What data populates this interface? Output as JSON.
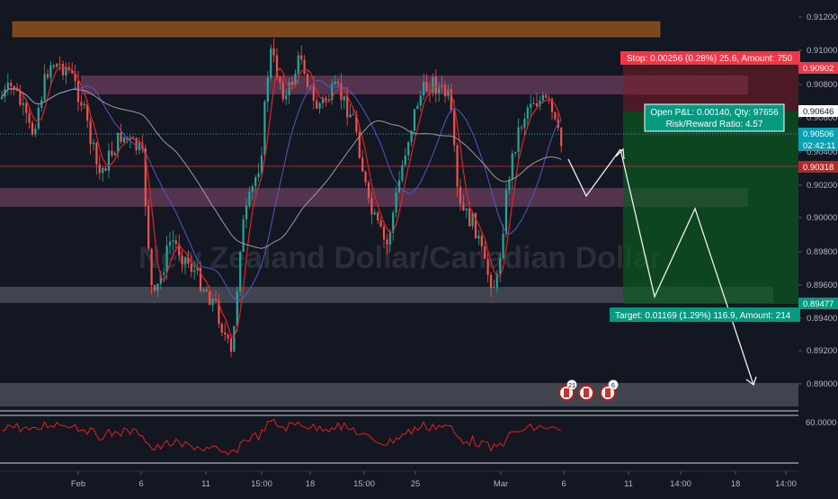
{
  "watermark": "New Zealand Dollar/Canadian Dollar",
  "price_axis": {
    "ticks": [
      "0.91200",
      "0.91000",
      "0.90800",
      "0.90600",
      "0.90400",
      "0.90200",
      "0.90000",
      "0.89800",
      "0.89600",
      "0.89400",
      "0.89200",
      "0.89000"
    ],
    "rsi_tick": "60.0000"
  },
  "time_axis": [
    "Feb",
    "6",
    "11",
    "15:00",
    "18",
    "15:00",
    "25",
    "Mar",
    "6",
    "11",
    "14:00",
    "18",
    "14:00"
  ],
  "tags": {
    "stop_price": "0.90902",
    "entry_price": "0.90646",
    "current_price": "0.90506",
    "countdown": "02:42:11",
    "red_price": "0.90318",
    "target_price": "0.89477"
  },
  "position": {
    "stop_label": "Stop: 0.00256 (0.28%) 25.6, Amount: 750",
    "open_pnl": "Open P&L: 0.00140, Qty: 97656",
    "rr_ratio": "Risk/Reward Ratio: 4.57",
    "target_label": "Target: 0.01169 (1.29%) 116.9, Amount: 214"
  },
  "events": [
    {
      "badge": "21"
    },
    {
      "badge": ""
    },
    {
      "badge": "6"
    }
  ],
  "colors": {
    "background": "#131722",
    "up_candle": "#26a69a",
    "down_candle": "#ef5350",
    "stop_tag": "#f23645",
    "target_tag": "#089981",
    "current_tag": "#2196f3",
    "resistance_band": "#c05c1f",
    "pink_zone": "#9c4a7c",
    "gray_zone": "#4a4e58",
    "rsi_line": "#e0201e"
  }
}
